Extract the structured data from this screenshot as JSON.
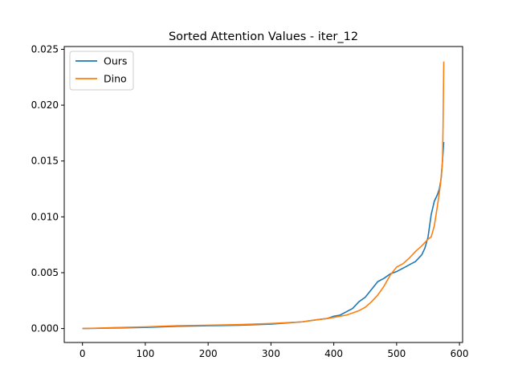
{
  "chart_data": {
    "type": "line",
    "title": "Sorted Attention Values - iter_12",
    "xlabel": "",
    "ylabel": "",
    "xlim": [
      -29,
      605
    ],
    "ylim": [
      -0.00125,
      0.02525
    ],
    "xticks": [
      0,
      100,
      200,
      300,
      400,
      500,
      600
    ],
    "xtick_labels": [
      "0",
      "100",
      "200",
      "300",
      "400",
      "500",
      "600"
    ],
    "yticks": [
      0.0,
      0.005,
      0.01,
      0.015,
      0.02,
      0.025
    ],
    "ytick_labels": [
      "0.000",
      "0.005",
      "0.010",
      "0.015",
      "0.020",
      "0.025"
    ],
    "grid": false,
    "legend_position": "top-left",
    "series": [
      {
        "name": "Ours",
        "color": "#1f77b4",
        "points": [
          [
            0,
            0.0
          ],
          [
            50,
            5e-05
          ],
          [
            100,
            0.0001
          ],
          [
            150,
            0.0002
          ],
          [
            200,
            0.00025
          ],
          [
            250,
            0.0003
          ],
          [
            300,
            0.0004
          ],
          [
            350,
            0.0006
          ],
          [
            375,
            0.0008
          ],
          [
            390,
            0.0009
          ],
          [
            400,
            0.0011
          ],
          [
            410,
            0.0012
          ],
          [
            420,
            0.0015
          ],
          [
            430,
            0.0018
          ],
          [
            440,
            0.0024
          ],
          [
            450,
            0.0028
          ],
          [
            460,
            0.0035
          ],
          [
            470,
            0.0042
          ],
          [
            480,
            0.0045
          ],
          [
            490,
            0.0049
          ],
          [
            500,
            0.0051
          ],
          [
            510,
            0.0054
          ],
          [
            520,
            0.0057
          ],
          [
            530,
            0.006
          ],
          [
            540,
            0.0066
          ],
          [
            545,
            0.0072
          ],
          [
            550,
            0.0082
          ],
          [
            555,
            0.0102
          ],
          [
            560,
            0.0114
          ],
          [
            565,
            0.012
          ],
          [
            568,
            0.0125
          ],
          [
            571,
            0.0135
          ],
          [
            573,
            0.015
          ],
          [
            575,
            0.0167
          ]
        ]
      },
      {
        "name": "Dino",
        "color": "#ff7f0e",
        "points": [
          [
            0,
            0.0
          ],
          [
            50,
            8e-05
          ],
          [
            100,
            0.00015
          ],
          [
            150,
            0.00025
          ],
          [
            200,
            0.0003
          ],
          [
            250,
            0.00035
          ],
          [
            300,
            0.00045
          ],
          [
            350,
            0.0006
          ],
          [
            375,
            0.0008
          ],
          [
            390,
            0.0009
          ],
          [
            400,
            0.001
          ],
          [
            420,
            0.0012
          ],
          [
            440,
            0.0016
          ],
          [
            450,
            0.0019
          ],
          [
            460,
            0.0024
          ],
          [
            470,
            0.003
          ],
          [
            480,
            0.0038
          ],
          [
            490,
            0.0048
          ],
          [
            500,
            0.0055
          ],
          [
            510,
            0.0058
          ],
          [
            520,
            0.0063
          ],
          [
            530,
            0.0069
          ],
          [
            540,
            0.0074
          ],
          [
            550,
            0.008
          ],
          [
            555,
            0.0082
          ],
          [
            560,
            0.0092
          ],
          [
            565,
            0.011
          ],
          [
            570,
            0.013
          ],
          [
            573,
            0.015
          ],
          [
            574,
            0.0185
          ],
          [
            575,
            0.0239
          ]
        ]
      }
    ]
  }
}
